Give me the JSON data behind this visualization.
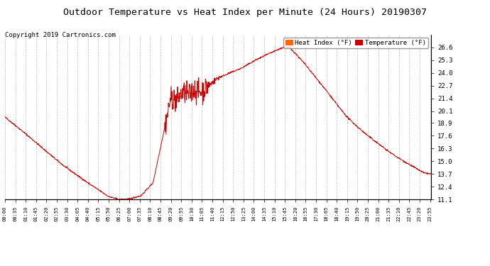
{
  "title": "Outdoor Temperature vs Heat Index per Minute (24 Hours) 20190307",
  "copyright_text": "Copyright 2019 Cartronics.com",
  "legend_labels": [
    "Heat Index (°F)",
    "Temperature (°F)"
  ],
  "legend_colors": [
    "#ff6600",
    "#cc0000"
  ],
  "line_color": "#cc0000",
  "background_color": "#ffffff",
  "grid_color": "#bbbbbb",
  "title_fontsize": 9.5,
  "copyright_fontsize": 6.5,
  "ylim": [
    11.1,
    27.9
  ],
  "yticks_right": [
    11.1,
    12.4,
    13.7,
    15.0,
    16.3,
    17.6,
    18.9,
    20.1,
    21.4,
    22.7,
    24.0,
    25.3,
    26.6
  ],
  "xtick_labels": [
    "00:00",
    "00:35",
    "01:10",
    "01:45",
    "02:20",
    "02:55",
    "03:30",
    "04:05",
    "04:40",
    "05:15",
    "05:50",
    "06:25",
    "07:00",
    "07:35",
    "08:10",
    "08:45",
    "09:20",
    "09:55",
    "10:30",
    "11:05",
    "11:40",
    "12:15",
    "12:50",
    "13:25",
    "14:00",
    "14:35",
    "15:10",
    "15:45",
    "16:20",
    "16:55",
    "17:30",
    "18:05",
    "18:40",
    "19:15",
    "19:50",
    "20:25",
    "21:00",
    "21:35",
    "22:10",
    "22:45",
    "23:20",
    "23:55"
  ],
  "num_points": 1440,
  "seed": 42,
  "figwidth": 6.9,
  "figheight": 3.75,
  "dpi": 100
}
